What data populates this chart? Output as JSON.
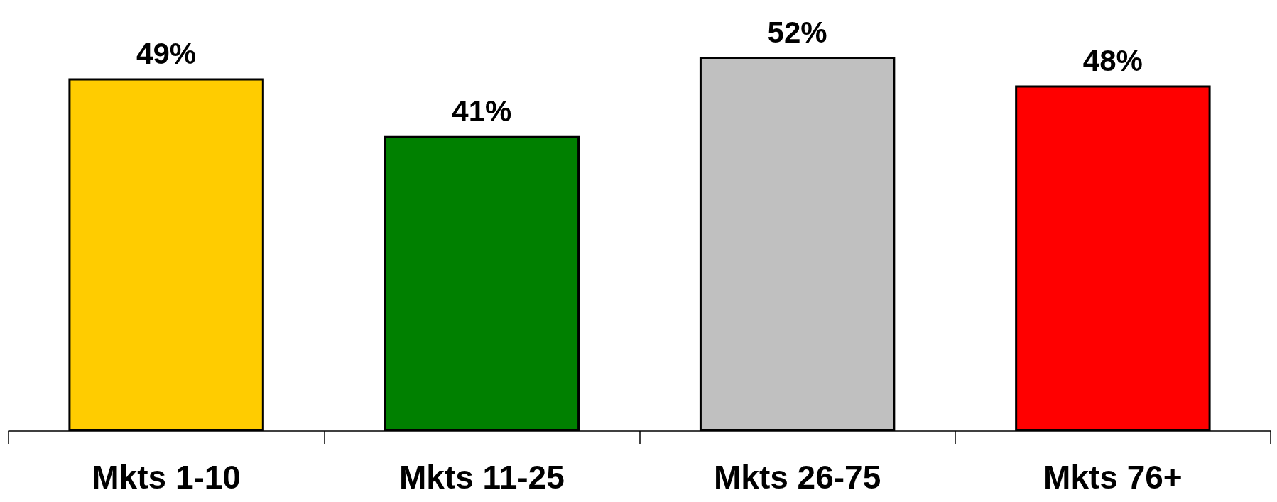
{
  "chart_data": {
    "type": "bar",
    "categories": [
      "Mkts 1-10",
      "Mkts 11-25",
      "Mkts 26-75",
      "Mkts 76+"
    ],
    "values": [
      49,
      41,
      52,
      48
    ],
    "colors": [
      "#ffcc00",
      "#008000",
      "#c0c0c0",
      "#ff0000"
    ],
    "value_labels": [
      "49%",
      "41%",
      "52%",
      "48%"
    ]
  }
}
